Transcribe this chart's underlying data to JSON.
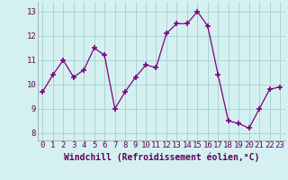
{
  "x": [
    0,
    1,
    2,
    3,
    4,
    5,
    6,
    7,
    8,
    9,
    10,
    11,
    12,
    13,
    14,
    15,
    16,
    17,
    18,
    19,
    20,
    21,
    22,
    23
  ],
  "y": [
    9.7,
    10.4,
    11.0,
    10.3,
    10.6,
    11.5,
    11.2,
    9.0,
    9.7,
    10.3,
    10.8,
    10.7,
    12.1,
    12.5,
    12.5,
    13.0,
    12.4,
    10.4,
    8.5,
    8.4,
    8.2,
    9.0,
    9.8,
    9.9
  ],
  "xlim": [
    -0.5,
    23.5
  ],
  "ylim": [
    7.7,
    13.4
  ],
  "yticks": [
    8,
    9,
    10,
    11,
    12,
    13
  ],
  "xticks": [
    0,
    1,
    2,
    3,
    4,
    5,
    6,
    7,
    8,
    9,
    10,
    11,
    12,
    13,
    14,
    15,
    16,
    17,
    18,
    19,
    20,
    21,
    22,
    23
  ],
  "xlabel": "Windchill (Refroidissement éolien,°C)",
  "line_color": "#800080",
  "marker": "+",
  "marker_size": 5,
  "bg_color": "#d4f0f0",
  "grid_color": "#aad4d4",
  "tick_fontsize": 6.5,
  "xlabel_fontsize": 7
}
